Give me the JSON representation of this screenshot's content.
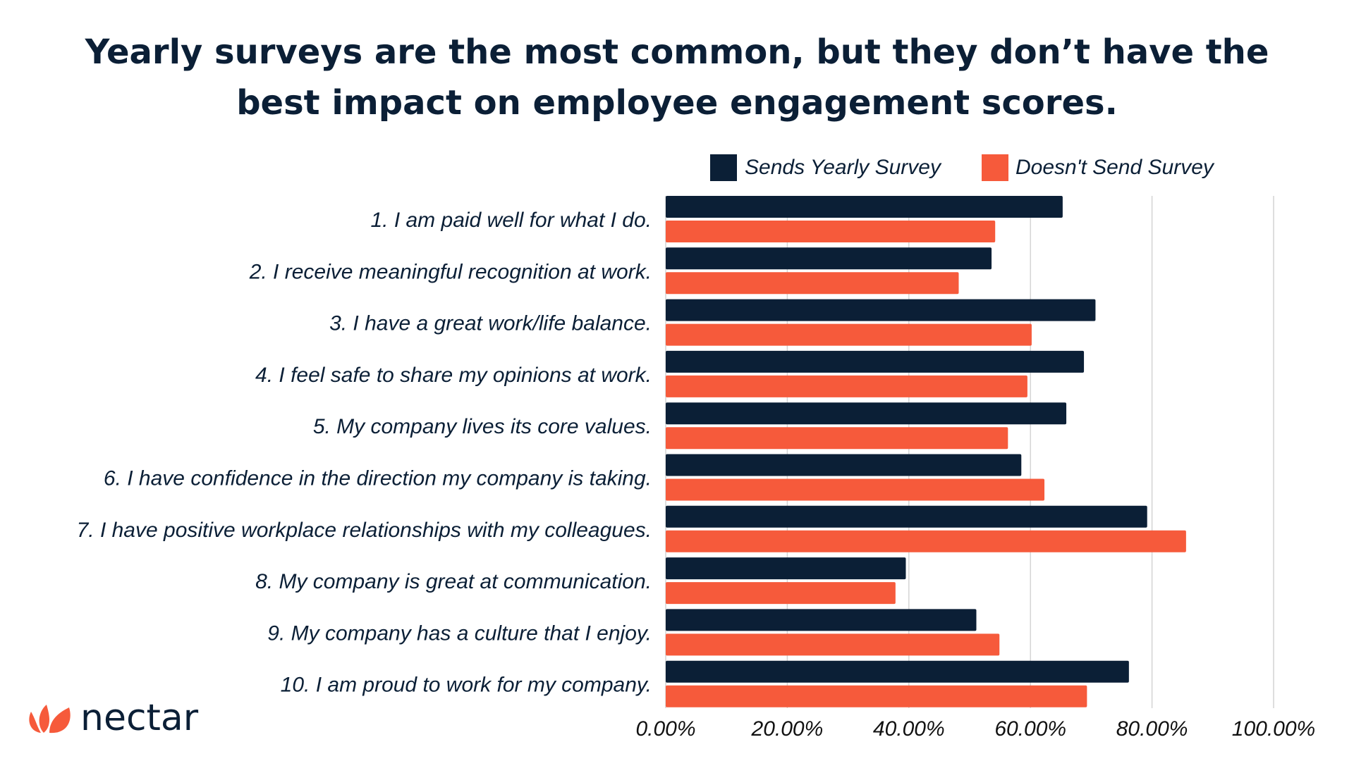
{
  "chart_data": {
    "type": "bar",
    "orientation": "horizontal",
    "title": [
      "Yearly surveys are the most common, but they don’t have the",
      "best impact on employee engagement scores."
    ],
    "categories": [
      "1. I am paid well for what I do.",
      "2. I receive meaningful recognition at work.",
      "3. I have a great work/life balance.",
      "4. I feel safe to share my opinions at work.",
      "5. My company lives its core values.",
      "6. I have confidence in the direction my company is taking.",
      "7. I have positive workplace relationships with my colleagues.",
      "8. My company is great at communication.",
      "9. My company has a culture that I enjoy.",
      "10. I am proud to work for my company."
    ],
    "series": [
      {
        "name": "Sends Yearly Survey",
        "color": "#0b1f36",
        "values": [
          65.3,
          53.6,
          70.7,
          68.8,
          65.9,
          58.5,
          79.2,
          39.5,
          51.1,
          76.2
        ]
      },
      {
        "name": "Doesn't Send Survey",
        "color": "#f65a3b",
        "values": [
          54.2,
          48.2,
          60.2,
          59.5,
          56.3,
          62.3,
          85.6,
          37.8,
          54.9,
          69.3
        ]
      }
    ],
    "xlim": [
      0,
      100
    ],
    "xticks": [
      0,
      20,
      40,
      60,
      80,
      100
    ],
    "xtick_labels": [
      "0.00%",
      "20.00%",
      "40.00%",
      "60.00%",
      "80.00%",
      "100.00%"
    ],
    "grid": "vertical",
    "legend": "top-right"
  },
  "brand": {
    "logo_text": "nectar",
    "logo_color": "#f65a3b"
  }
}
